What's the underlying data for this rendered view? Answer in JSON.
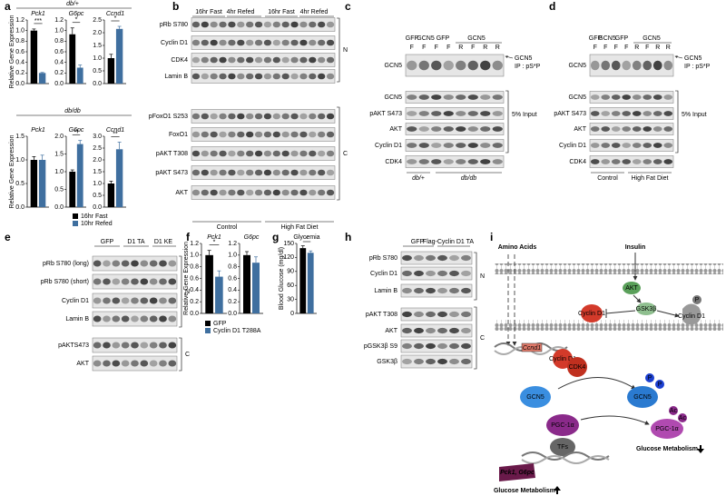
{
  "panels": [
    "a",
    "b",
    "c",
    "d",
    "e",
    "f",
    "g",
    "h",
    "i"
  ],
  "chart_data": [
    {
      "type": "bar",
      "section": "db/+",
      "title": "Pck1",
      "ylabel": "Relative Gene Expression",
      "ylim": [
        0,
        1.2
      ],
      "yticks": [
        {
          "value": 0,
          "label": "0.0"
        },
        0.2,
        0.4,
        0.6,
        0.8,
        {
          "value": 1,
          "label": "1.0"
        },
        1.2
      ],
      "series": [
        {
          "color": "#000000",
          "values": [
            1.0
          ],
          "errors": [
            0.03
          ]
        },
        {
          "color": "#3f6f9f",
          "values": [
            0.2
          ],
          "errors": [
            0.01
          ]
        }
      ],
      "annotations": [
        "***"
      ]
    },
    {
      "type": "bar",
      "title": "G6pc",
      "ylim": [
        0,
        1.2
      ],
      "yticks": [
        {
          "value": 0,
          "label": "0.0"
        },
        0.2,
        0.4,
        0.6,
        0.8,
        {
          "value": 1,
          "label": "1.0"
        },
        1.2
      ],
      "series": [
        {
          "color": "#000000",
          "values": [
            0.93
          ],
          "errors": [
            0.12
          ]
        },
        {
          "color": "#3f6f9f",
          "values": [
            0.3
          ],
          "errors": [
            0.05
          ]
        }
      ],
      "annotations": [
        "*"
      ]
    },
    {
      "type": "bar",
      "title": "Ccnd1",
      "ylim": [
        0,
        2.5
      ],
      "yticks": [
        {
          "value": 0,
          "label": "0.0"
        },
        0.5,
        {
          "value": 1,
          "label": "1.0"
        },
        1.5,
        {
          "value": 2,
          "label": "2.0"
        },
        2.5
      ],
      "series": [
        {
          "color": "#000000",
          "values": [
            1.0
          ],
          "errors": [
            0.15
          ]
        },
        {
          "color": "#3f6f9f",
          "values": [
            2.15
          ],
          "errors": [
            0.1
          ]
        }
      ],
      "annotations": [
        "*"
      ]
    },
    {
      "type": "bar",
      "section": "db/db",
      "title": "Pck1",
      "ylabel": "Relative Gene Expression",
      "ylim": [
        0,
        1.5
      ],
      "yticks": [
        {
          "value": 0,
          "label": "0.0"
        },
        0.5,
        {
          "value": 1,
          "label": "1.0"
        },
        1.5
      ],
      "series": [
        {
          "color": "#000000",
          "values": [
            1.0
          ],
          "errors": [
            0.07
          ]
        },
        {
          "color": "#3f6f9f",
          "values": [
            1.0
          ],
          "errors": [
            0.1
          ]
        }
      ],
      "annotations": []
    },
    {
      "type": "bar",
      "title": "G6pc",
      "ylim": [
        0,
        2.0
      ],
      "yticks": [
        {
          "value": 0,
          "label": "0.0"
        },
        0.5,
        {
          "value": 1,
          "label": "1.0"
        },
        1.5,
        {
          "value": 2,
          "label": "2.0"
        }
      ],
      "series": [
        {
          "name": "16hr Fast",
          "color": "#000000",
          "values": [
            1.0
          ],
          "errors": [
            0.05
          ]
        },
        {
          "name": "10hr Refed",
          "color": "#3f6f9f",
          "values": [
            1.78
          ],
          "errors": [
            0.1
          ]
        }
      ],
      "annotations": [
        "**"
      ]
    },
    {
      "type": "bar",
      "title": "Ccnd1",
      "ylim": [
        0,
        3.0
      ],
      "yticks": [
        {
          "value": 0,
          "label": "0.0"
        },
        0.5,
        {
          "value": 1,
          "label": "1.0"
        },
        1.5,
        {
          "value": 2,
          "label": "2.0"
        },
        2.5,
        {
          "value": 3,
          "label": "3.0"
        }
      ],
      "series": [
        {
          "color": "#000000",
          "values": [
            1.0
          ],
          "errors": [
            0.1
          ]
        },
        {
          "color": "#3f6f9f",
          "values": [
            2.45
          ],
          "errors": [
            0.3
          ]
        }
      ],
      "annotations": [
        "**"
      ]
    },
    {
      "type": "bar",
      "title": "Pck1",
      "ylabel": "Relative Gene Expression",
      "ylim": [
        0,
        1.2
      ],
      "yticks": [
        {
          "value": 0,
          "label": "0.0"
        },
        0.2,
        0.4,
        0.6,
        0.8,
        {
          "value": 1,
          "label": "1.0"
        },
        1.2
      ],
      "series": [
        {
          "name": "GFP",
          "color": "#000000",
          "values": [
            1.0
          ],
          "errors": [
            0.08
          ]
        },
        {
          "name": "Cyclin D1 T288A",
          "color": "#3f6f9f",
          "values": [
            0.63
          ],
          "errors": [
            0.1
          ]
        }
      ],
      "annotations": [
        "*"
      ]
    },
    {
      "type": "bar",
      "title": "G6pc",
      "ylim": [
        0,
        1.2
      ],
      "yticks": [
        {
          "value": 0,
          "label": "0.0"
        },
        0.2,
        0.4,
        0.6,
        0.8,
        {
          "value": 1,
          "label": "1.0"
        },
        1.2
      ],
      "series": [
        {
          "color": "#000000",
          "values": [
            1.0
          ],
          "errors": [
            0.06
          ]
        },
        {
          "color": "#3f6f9f",
          "values": [
            0.87
          ],
          "errors": [
            0.1
          ]
        }
      ],
      "annotations": []
    },
    {
      "type": "bar",
      "title": "Glycemia",
      "ylabel": "Blood Glucose (mg/dl)",
      "ylim": [
        0,
        150
      ],
      "yticks": [
        0,
        30,
        60,
        90,
        120,
        150
      ],
      "series": [
        {
          "color": "#000000",
          "values": [
            140
          ],
          "errors": [
            5
          ]
        },
        {
          "color": "#3f6f9f",
          "values": [
            130
          ],
          "errors": [
            4
          ]
        }
      ],
      "annotations": [
        "*"
      ]
    }
  ],
  "blots": {
    "b": {
      "columns": [
        "16hr Fast",
        "4hr Refed",
        "16hr Fast",
        "4hr Refed"
      ],
      "rows": [
        "pRb S780",
        "Cyclin D1",
        "CDK4",
        "Lamin B",
        "pFoxO1 S253",
        "FoxO1",
        "pAKT T308",
        "pAKT S473",
        "AKT"
      ],
      "fractions": [
        "N",
        "C"
      ],
      "groups": [
        "Control",
        "High Fat Diet"
      ]
    },
    "c": {
      "columns": [
        "GFP",
        "GCN5",
        "GFP",
        "GCN5"
      ],
      "lanes": [
        "F",
        "F",
        "F",
        "F",
        "R",
        "F",
        "R",
        "R"
      ],
      "ip_row": "GCN5",
      "ip_target": "GCN5",
      "ip_label": "IP : pS*P",
      "rows": [
        "GCN5",
        "pAKT S473",
        "AKT",
        "Cyclin D1",
        "CDK4"
      ],
      "input_label": "5% Input",
      "groups": [
        "db/+",
        "db/db"
      ]
    },
    "d": {
      "columns": [
        "GFP",
        "GCN5",
        "GFP",
        "GCN5"
      ],
      "lanes": [
        "F",
        "F",
        "F",
        "F",
        "R",
        "F",
        "R",
        "R"
      ],
      "ip_row": "GCN5",
      "ip_target": "GCN5",
      "ip_label": "IP : pS*P",
      "rows": [
        "GCN5",
        "pAKT S473",
        "AKT",
        "Cyclin D1",
        "CDK4"
      ],
      "input_label": "5% Input",
      "groups": [
        "Control",
        "High Fat Diet"
      ]
    },
    "e": {
      "columns": [
        "GFP",
        "D1 TA",
        "D1 KE"
      ],
      "rows": [
        "pRb S780 (long)",
        "pRb S780 (short)",
        "Cyclin D1",
        "Lamin B",
        "pAKTS473",
        "AKT"
      ],
      "fractions": [
        "N",
        "C"
      ]
    },
    "h": {
      "columns": [
        "GFP",
        "Flag-Cyclin D1 TA"
      ],
      "rows": [
        "pRb S780",
        "Cyclin D1",
        "Lamin B",
        "pAKT T308",
        "AKT",
        "pGSK3β S9",
        "GSK3β"
      ],
      "fractions": [
        "N",
        "C"
      ]
    }
  },
  "diagram": {
    "amino_acids": "Amino Acids",
    "insulin": "Insulin",
    "akt": "AKT",
    "gsk3b": "GSK3β",
    "phospho": "P",
    "cyclin_d1": "Cyclin D1",
    "gene": "Ccnd1",
    "cdk4": "CDK4",
    "gcn5": "GCN5",
    "acetyl": "Ac",
    "pgc1a": "PGC-1α",
    "tfs": "TFs",
    "targets": "Pck1, G6pc",
    "outcome": "Glucose Metabolism"
  }
}
